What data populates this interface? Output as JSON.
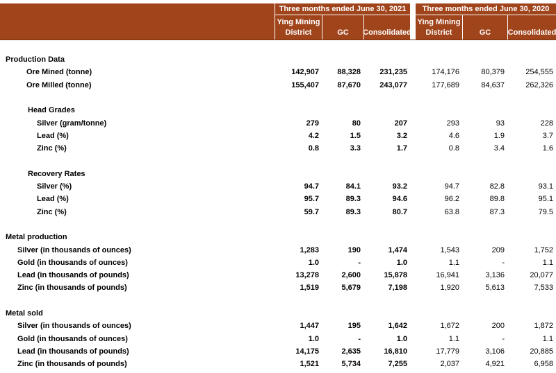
{
  "header": {
    "groups": [
      "Three months ended June 30, 2021",
      "Three months ended June 30, 2020"
    ],
    "columns": [
      "Ying Mining District",
      "GC",
      "Consolidated",
      "Ying Mining District",
      "GC",
      "Consolidated"
    ]
  },
  "sections": [
    {
      "title": "Production Data",
      "rows": [
        {
          "label": "Ore Mined (tonne)",
          "values": [
            "142,907",
            "88,328",
            "231,235",
            "174,176",
            "80,379",
            "254,555"
          ]
        },
        {
          "label": "Ore Milled (tonne)",
          "values": [
            "155,407",
            "87,670",
            "243,077",
            "177,689",
            "84,637",
            "262,326"
          ]
        }
      ],
      "groups": [
        {
          "title": "Head Grades",
          "rows": [
            {
              "label": "Silver (gram/tonne)",
              "values": [
                "279",
                "80",
                "207",
                "293",
                "93",
                "228"
              ]
            },
            {
              "label": "Lead  (%)",
              "values": [
                "4.2",
                "1.5",
                "3.2",
                "4.6",
                "1.9",
                "3.7"
              ]
            },
            {
              "label": "Zinc (%)",
              "values": [
                "0.8",
                "3.3",
                "1.7",
                "0.8",
                "3.4",
                "1.6"
              ]
            }
          ]
        },
        {
          "title": "Recovery Rates",
          "rows": [
            {
              "label": "Silver  (%)",
              "values": [
                "94.7",
                "84.1",
                "93.2",
                "94.7",
                "82.8",
                "93.1"
              ]
            },
            {
              "label": "Lead  (%)",
              "values": [
                "95.7",
                "89.3",
                "94.6",
                "96.2",
                "89.8",
                "95.1"
              ]
            },
            {
              "label": "Zinc (%)",
              "values": [
                "59.7",
                "89.3",
                "80.7",
                "63.8",
                "87.3",
                "79.5"
              ]
            }
          ]
        }
      ]
    },
    {
      "title": "Metal production",
      "rows": [
        {
          "label": "Silver (in thousands of ounces)",
          "values": [
            "1,283",
            "190",
            "1,474",
            "1,543",
            "209",
            "1,752"
          ]
        },
        {
          "label": "Gold (in thousands of ounces)",
          "values": [
            "1.0",
            "-",
            "1.0",
            "1.1",
            "-",
            "1.1"
          ]
        },
        {
          "label": "Lead (in thousands of pounds)",
          "values": [
            "13,278",
            "2,600",
            "15,878",
            "16,941",
            "3,136",
            "20,077"
          ]
        },
        {
          "label": "Zinc (in thousands of pounds)",
          "values": [
            "1,519",
            "5,679",
            "7,198",
            "1,920",
            "5,613",
            "7,533"
          ]
        }
      ]
    },
    {
      "title": "Metal sold",
      "rows": [
        {
          "label": "Silver (in thousands of ounces)",
          "values": [
            "1,447",
            "195",
            "1,642",
            "1,672",
            "200",
            "1,872"
          ]
        },
        {
          "label": "Gold (in thousands of ounces)",
          "values": [
            "1.0",
            "-",
            "1.0",
            "1.1",
            "-",
            "1.1"
          ]
        },
        {
          "label": "Lead (in thousands of pounds)",
          "values": [
            "14,175",
            "2,635",
            "16,810",
            "17,779",
            "3,106",
            "20,885"
          ]
        },
        {
          "label": "Zinc (in thousands of pounds)",
          "values": [
            "1,521",
            "5,734",
            "7,255",
            "2,037",
            "4,921",
            "6,958"
          ]
        }
      ]
    }
  ]
}
